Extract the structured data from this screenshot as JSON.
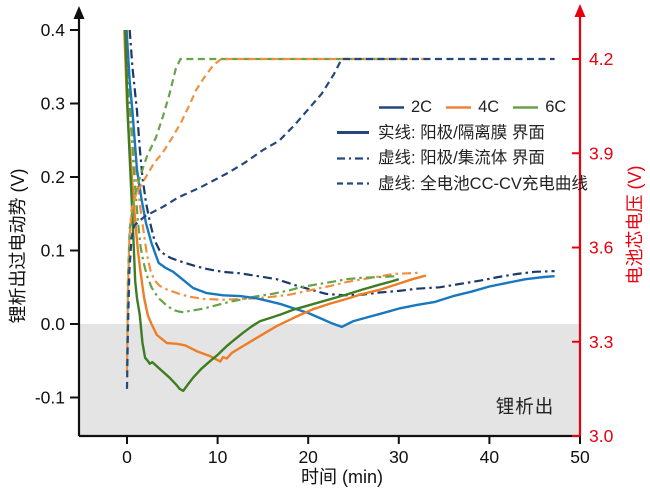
{
  "chart_data": {
    "type": "line",
    "title": "",
    "x_axis": {
      "label": "时间 (min)",
      "range_shown": [
        -5.3,
        50
      ],
      "ticks": [
        0,
        10,
        20,
        30,
        40,
        50
      ]
    },
    "y_axis_left": {
      "label": "锂析出过电动势 (V)",
      "range_shown": [
        -0.152,
        0.427
      ],
      "ticks": [
        0.4,
        0.3,
        0.2,
        0.1,
        0.0,
        -0.1
      ],
      "color": "#111111"
    },
    "y_axis_right": {
      "label": "电池芯电压 (V)",
      "range_shown": [
        2.98,
        4.36
      ],
      "ticks": [
        4.2,
        3.9,
        3.6,
        3.3,
        3.0
      ],
      "color": "#e8000f"
    },
    "shaded_region": {
      "label": "锂析出",
      "below_overpotential": 0.0,
      "fill": "#e4e4e4"
    },
    "legend": {
      "rates": [
        {
          "label": "2C",
          "color": "#24477e"
        },
        {
          "label": "4C",
          "color": "#f08438"
        },
        {
          "label": "6C",
          "color": "#69a24d"
        }
      ],
      "styles": [
        {
          "style": "solid",
          "label": "实线: 阳极/隔离膜 界面"
        },
        {
          "style": "dashdot",
          "label": "虚线: 阳极/集流体 界面"
        },
        {
          "style": "dashed",
          "label": "虚线: 全电池CC-CV充电曲线"
        }
      ],
      "style_swatch_color": "#24477e"
    },
    "series": [
      {
        "id": "2c-collector-dashdot",
        "name": "2C 阳极/集流体 界面",
        "style": "dashdot",
        "axis": "left",
        "color": "#1b3a6b",
        "points": [
          [
            0.3,
            0.4
          ],
          [
            0.6,
            0.35
          ],
          [
            1.1,
            0.29
          ],
          [
            1.4,
            0.24
          ],
          [
            1.7,
            0.2
          ],
          [
            2.1,
            0.165
          ],
          [
            2.5,
            0.14
          ],
          [
            3.0,
            0.115
          ],
          [
            3.6,
            0.1
          ],
          [
            4.3,
            0.093
          ],
          [
            5.0,
            0.089
          ],
          [
            6.2,
            0.084
          ],
          [
            7.5,
            0.079
          ],
          [
            8.8,
            0.075
          ],
          [
            10.5,
            0.071
          ],
          [
            12.5,
            0.069
          ],
          [
            14.5,
            0.065
          ],
          [
            16.5,
            0.061
          ],
          [
            18.5,
            0.053
          ],
          [
            20.5,
            0.046
          ],
          [
            22.0,
            0.041
          ],
          [
            24.0,
            0.039
          ],
          [
            26.0,
            0.04
          ],
          [
            28.0,
            0.043
          ],
          [
            30.0,
            0.045
          ],
          [
            32.0,
            0.048
          ],
          [
            34.5,
            0.05
          ],
          [
            37.0,
            0.055
          ],
          [
            39.0,
            0.059
          ],
          [
            41.0,
            0.064
          ],
          [
            43.0,
            0.068
          ],
          [
            45.0,
            0.071
          ],
          [
            47.2,
            0.072
          ]
        ]
      },
      {
        "id": "4c-collector-dashdot",
        "name": "4C 阳极/集流体 界面",
        "style": "dashdot",
        "axis": "left",
        "color": "#f0903f",
        "points": [
          [
            0.0,
            0.4
          ],
          [
            0.3,
            0.33
          ],
          [
            0.6,
            0.27
          ],
          [
            0.9,
            0.22
          ],
          [
            1.2,
            0.185
          ],
          [
            1.5,
            0.155
          ],
          [
            1.9,
            0.12
          ],
          [
            2.2,
            0.095
          ],
          [
            2.6,
            0.072
          ],
          [
            3.0,
            0.06
          ],
          [
            3.6,
            0.052
          ],
          [
            4.4,
            0.047
          ],
          [
            5.1,
            0.044
          ],
          [
            6.0,
            0.04
          ],
          [
            7.0,
            0.037
          ],
          [
            8.5,
            0.034
          ],
          [
            10.6,
            0.033
          ],
          [
            12.5,
            0.034
          ],
          [
            14.3,
            0.035
          ],
          [
            16.0,
            0.037
          ],
          [
            18.0,
            0.04
          ],
          [
            19.5,
            0.044
          ],
          [
            21.0,
            0.048
          ],
          [
            22.5,
            0.052
          ],
          [
            24.2,
            0.057
          ],
          [
            26.0,
            0.061
          ],
          [
            27.5,
            0.064
          ],
          [
            29.4,
            0.068
          ],
          [
            31.0,
            0.069
          ],
          [
            32.5,
            0.07
          ]
        ]
      },
      {
        "id": "6c-collector-dashdot",
        "name": "6C 阳极/集流体 界面",
        "style": "dashdot",
        "axis": "left",
        "color": "#67a247",
        "points": [
          [
            -0.1,
            0.4
          ],
          [
            0.2,
            0.31
          ],
          [
            0.5,
            0.26
          ],
          [
            0.7,
            0.22
          ],
          [
            0.9,
            0.185
          ],
          [
            1.2,
            0.14
          ],
          [
            1.5,
            0.105
          ],
          [
            1.8,
            0.085
          ],
          [
            2.2,
            0.066
          ],
          [
            2.7,
            0.05
          ],
          [
            3.1,
            0.042
          ],
          [
            3.6,
            0.034
          ],
          [
            4.3,
            0.026
          ],
          [
            5.1,
            0.019
          ],
          [
            5.7,
            0.017
          ],
          [
            6.2,
            0.016
          ],
          [
            7.0,
            0.018
          ],
          [
            8.0,
            0.02
          ],
          [
            8.8,
            0.022
          ],
          [
            10.0,
            0.026
          ],
          [
            11.3,
            0.03
          ],
          [
            12.5,
            0.033
          ],
          [
            14.0,
            0.037
          ],
          [
            16.0,
            0.041
          ],
          [
            18.0,
            0.046
          ],
          [
            19.1,
            0.05
          ],
          [
            21.0,
            0.054
          ],
          [
            22.5,
            0.057
          ],
          [
            24.2,
            0.061
          ],
          [
            26.0,
            0.063
          ],
          [
            28.0,
            0.064
          ],
          [
            29.8,
            0.065
          ]
        ]
      },
      {
        "id": "2c-separator-solid",
        "name": "2C 阳极/隔离膜 界面",
        "style": "solid",
        "axis": "left",
        "color": "#1878bf",
        "points": [
          [
            -0.05,
            0.4
          ],
          [
            0.3,
            0.33
          ],
          [
            0.6,
            0.29
          ],
          [
            1.1,
            0.21
          ],
          [
            1.6,
            0.17
          ],
          [
            2.1,
            0.137
          ],
          [
            2.7,
            0.11
          ],
          [
            3.5,
            0.083
          ],
          [
            4.3,
            0.076
          ],
          [
            5.1,
            0.071
          ],
          [
            6.2,
            0.06
          ],
          [
            7.3,
            0.049
          ],
          [
            8.8,
            0.042
          ],
          [
            10.6,
            0.039
          ],
          [
            12.5,
            0.038
          ],
          [
            14.3,
            0.035
          ],
          [
            16.0,
            0.03
          ],
          [
            17.0,
            0.027
          ],
          [
            18.5,
            0.021
          ],
          [
            20.0,
            0.015
          ],
          [
            21.5,
            0.007
          ],
          [
            22.6,
            0.001
          ],
          [
            23.7,
            -0.004
          ],
          [
            25.0,
            0.004
          ],
          [
            26.5,
            0.009
          ],
          [
            28.0,
            0.014
          ],
          [
            30.0,
            0.021
          ],
          [
            32.0,
            0.026
          ],
          [
            34.0,
            0.03
          ],
          [
            36.0,
            0.038
          ],
          [
            38.0,
            0.044
          ],
          [
            40.0,
            0.051
          ],
          [
            42.0,
            0.056
          ],
          [
            44.0,
            0.061
          ],
          [
            46.0,
            0.064
          ],
          [
            47.2,
            0.065
          ]
        ]
      },
      {
        "id": "4c-separator-solid",
        "name": "4C 阳极/隔离膜 界面",
        "style": "solid",
        "axis": "left",
        "color": "#ee7d26",
        "points": [
          [
            -0.3,
            0.4
          ],
          [
            0.0,
            0.3
          ],
          [
            0.3,
            0.24
          ],
          [
            0.6,
            0.19
          ],
          [
            0.9,
            0.14
          ],
          [
            1.2,
            0.1
          ],
          [
            1.5,
            0.07
          ],
          [
            1.9,
            0.035
          ],
          [
            2.3,
            0.012
          ],
          [
            2.7,
            0.0
          ],
          [
            3.3,
            -0.015
          ],
          [
            4.4,
            -0.026
          ],
          [
            5.5,
            -0.027
          ],
          [
            6.4,
            -0.029
          ],
          [
            7.7,
            -0.037
          ],
          [
            9.2,
            -0.044
          ],
          [
            10.3,
            -0.051
          ],
          [
            10.6,
            -0.045
          ],
          [
            11.0,
            -0.047
          ],
          [
            11.6,
            -0.039
          ],
          [
            12.8,
            -0.03
          ],
          [
            14.7,
            -0.016
          ],
          [
            16.5,
            -0.003
          ],
          [
            18.5,
            0.009
          ],
          [
            20.5,
            0.02
          ],
          [
            22.5,
            0.028
          ],
          [
            24.2,
            0.034
          ],
          [
            26.0,
            0.041
          ],
          [
            28.0,
            0.047
          ],
          [
            30.0,
            0.055
          ],
          [
            31.5,
            0.061
          ],
          [
            33.0,
            0.066
          ]
        ]
      },
      {
        "id": "6c-separator-solid",
        "name": "6C 阳极/隔离膜 界面",
        "style": "solid",
        "axis": "left",
        "color": "#3f7d22",
        "points": [
          [
            -0.2,
            0.4
          ],
          [
            0.1,
            0.28
          ],
          [
            0.4,
            0.2
          ],
          [
            0.7,
            0.12
          ],
          [
            0.9,
            0.058
          ],
          [
            1.1,
            0.035
          ],
          [
            1.4,
            0.013
          ],
          [
            1.7,
            -0.025
          ],
          [
            2.0,
            -0.046
          ],
          [
            2.3,
            -0.05
          ],
          [
            2.5,
            -0.054
          ],
          [
            2.8,
            -0.052
          ],
          [
            3.6,
            -0.061
          ],
          [
            4.7,
            -0.073
          ],
          [
            5.4,
            -0.082
          ],
          [
            5.8,
            -0.088
          ],
          [
            6.2,
            -0.091
          ],
          [
            6.8,
            -0.081
          ],
          [
            7.3,
            -0.073
          ],
          [
            8.2,
            -0.061
          ],
          [
            9.2,
            -0.05
          ],
          [
            10.0,
            -0.042
          ],
          [
            11.0,
            -0.03
          ],
          [
            12.0,
            -0.02
          ],
          [
            12.8,
            -0.012
          ],
          [
            13.8,
            -0.003
          ],
          [
            14.7,
            0.004
          ],
          [
            16.0,
            0.009
          ],
          [
            17.0,
            0.013
          ],
          [
            18.5,
            0.02
          ],
          [
            20.5,
            0.027
          ],
          [
            22.5,
            0.034
          ],
          [
            24.2,
            0.04
          ],
          [
            26.0,
            0.047
          ],
          [
            28.0,
            0.054
          ],
          [
            29.2,
            0.058
          ],
          [
            30.0,
            0.061
          ]
        ]
      },
      {
        "id": "6c-cccv-dashed",
        "name": "6C 全电池CC-CV充电曲线",
        "style": "dashed",
        "axis": "right",
        "color": "#68a24c",
        "points": [
          [
            0.0,
            3.22
          ],
          [
            0.1,
            3.5
          ],
          [
            0.3,
            3.66
          ],
          [
            0.8,
            3.76
          ],
          [
            1.5,
            3.83
          ],
          [
            2.2,
            3.89
          ],
          [
            3.2,
            3.95
          ],
          [
            4.0,
            4.02
          ],
          [
            4.7,
            4.09
          ],
          [
            5.4,
            4.17
          ],
          [
            5.9,
            4.2
          ],
          [
            30.0,
            4.2
          ]
        ]
      },
      {
        "id": "4c-cccv-dashed",
        "name": "4C 全电池CC-CV充电曲线",
        "style": "dashed",
        "axis": "right",
        "color": "#f0913f",
        "points": [
          [
            0.0,
            3.2
          ],
          [
            0.1,
            3.45
          ],
          [
            0.25,
            3.62
          ],
          [
            0.5,
            3.72
          ],
          [
            1.0,
            3.77
          ],
          [
            2.0,
            3.82
          ],
          [
            3.0,
            3.87
          ],
          [
            3.9,
            3.9
          ],
          [
            5.0,
            3.95
          ],
          [
            6.0,
            4.0
          ],
          [
            7.0,
            4.06
          ],
          [
            7.6,
            4.1
          ],
          [
            8.5,
            4.14
          ],
          [
            9.5,
            4.18
          ],
          [
            10.4,
            4.2
          ],
          [
            33.0,
            4.2
          ]
        ]
      },
      {
        "id": "2c-cccv-dashed",
        "name": "2C 全电池CC-CV充电曲线",
        "style": "dashed",
        "axis": "right",
        "color": "#24477e",
        "points": [
          [
            0.0,
            3.15
          ],
          [
            0.1,
            3.33
          ],
          [
            0.25,
            3.52
          ],
          [
            0.5,
            3.63
          ],
          [
            0.8,
            3.67
          ],
          [
            2.0,
            3.7
          ],
          [
            4.0,
            3.73
          ],
          [
            5.7,
            3.76
          ],
          [
            8.0,
            3.79
          ],
          [
            10.0,
            3.82
          ],
          [
            11.3,
            3.84
          ],
          [
            13.0,
            3.87
          ],
          [
            15.0,
            3.91
          ],
          [
            16.8,
            3.94
          ],
          [
            18.5,
            3.99
          ],
          [
            20.0,
            4.04
          ],
          [
            21.5,
            4.09
          ],
          [
            22.8,
            4.15
          ],
          [
            23.7,
            4.2
          ],
          [
            47.2,
            4.2
          ]
        ]
      }
    ]
  }
}
